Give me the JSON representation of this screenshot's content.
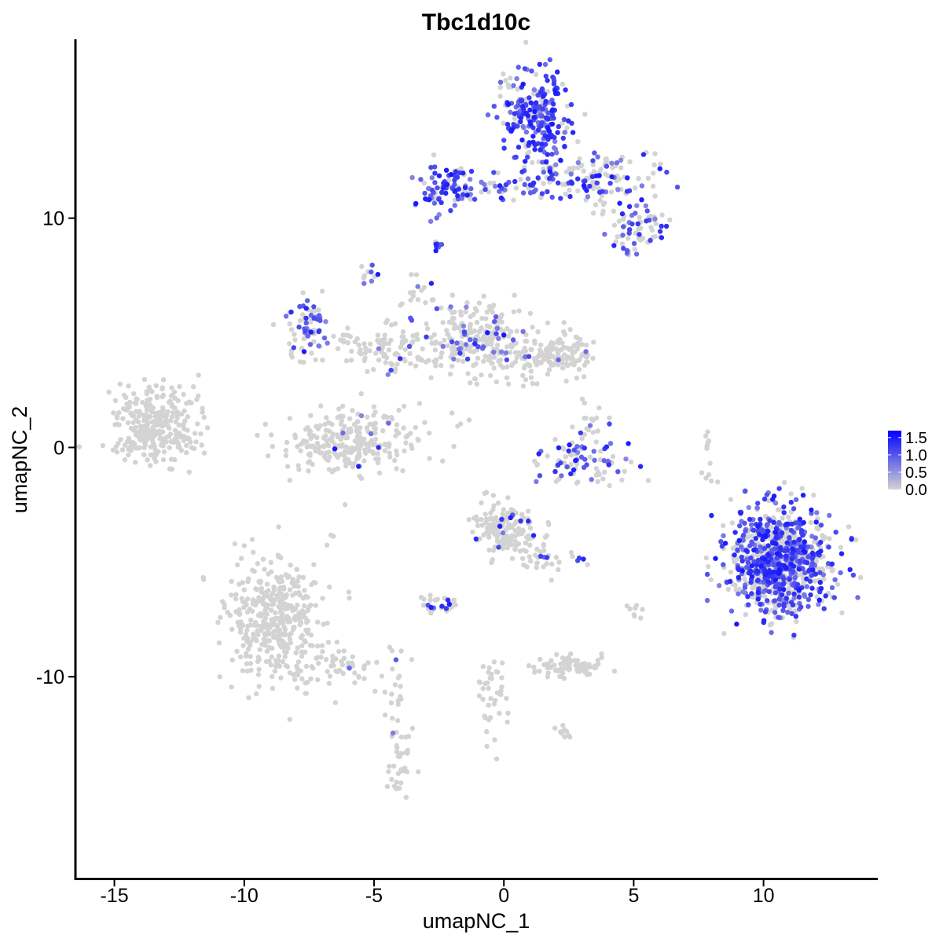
{
  "chart_data": {
    "type": "scatter",
    "title": "Tbc1d10c",
    "xlabel": "umapNC_1",
    "ylabel": "umapNC_2",
    "xlim": [
      -16.5,
      14.4
    ],
    "ylim": [
      -18.8,
      17.8
    ],
    "xticks": [
      -15,
      -10,
      -5,
      0,
      5,
      10
    ],
    "xtick_labels": [
      "-15",
      "-10",
      "-5",
      "0",
      "5",
      "10"
    ],
    "yticks": [
      -10,
      0,
      10
    ],
    "ytick_labels": [
      "-10",
      "0",
      "10"
    ],
    "grid": false,
    "color_scale": {
      "low": "#d3d3d3",
      "high": "#0000ff",
      "min": 0.0,
      "max": 1.7,
      "breaks": [
        0.0,
        0.5,
        1.0,
        1.5
      ],
      "break_labels": [
        "0.0",
        "0.5",
        "1.0",
        "1.5"
      ],
      "legend_position": "right"
    },
    "clusters": [
      {
        "cx": -13.5,
        "cy": 1.0,
        "sx": 0.8,
        "sy": 0.9,
        "n": 300,
        "expr_frac": 0.0
      },
      {
        "cx": -8.8,
        "cy": -7.5,
        "sx": 0.9,
        "sy": 1.3,
        "n": 380,
        "expr_frac": 0.0
      },
      {
        "cx": -6.5,
        "cy": -9.5,
        "sx": 1.5,
        "sy": 0.5,
        "n": 70,
        "expr_frac": 0.02
      },
      {
        "cx": -4.0,
        "cy": -12.5,
        "sx": 0.25,
        "sy": 1.6,
        "n": 50,
        "expr_frac": 0.04
      },
      {
        "cx": -5.8,
        "cy": 0.3,
        "sx": 1.3,
        "sy": 0.7,
        "n": 260,
        "expr_frac": 0.02
      },
      {
        "cx": -7.5,
        "cy": 5.3,
        "sx": 0.4,
        "sy": 0.7,
        "n": 70,
        "expr_frac": 0.55
      },
      {
        "cx": -4.5,
        "cy": 4.2,
        "sx": 1.2,
        "sy": 0.5,
        "n": 110,
        "expr_frac": 0.08
      },
      {
        "cx": -1.0,
        "cy": 4.8,
        "sx": 0.9,
        "sy": 0.9,
        "n": 240,
        "expr_frac": 0.15
      },
      {
        "cx": 2.0,
        "cy": 4.0,
        "sx": 0.7,
        "sy": 0.5,
        "n": 150,
        "expr_frac": 0.03
      },
      {
        "cx": 1.2,
        "cy": 14.5,
        "sx": 0.7,
        "sy": 1.1,
        "n": 260,
        "expr_frac": 0.75
      },
      {
        "cx": -2.2,
        "cy": 11.3,
        "sx": 0.6,
        "sy": 0.5,
        "n": 90,
        "expr_frac": 0.75
      },
      {
        "cx": 0.0,
        "cy": 11.3,
        "sx": 1.2,
        "sy": 0.25,
        "n": 45,
        "expr_frac": 0.6
      },
      {
        "cx": 3.6,
        "cy": 11.8,
        "sx": 1.2,
        "sy": 0.6,
        "n": 140,
        "expr_frac": 0.4
      },
      {
        "cx": 5.2,
        "cy": 9.5,
        "sx": 0.6,
        "sy": 0.6,
        "n": 70,
        "expr_frac": 0.5
      },
      {
        "cx": 3.0,
        "cy": -0.5,
        "sx": 1.0,
        "sy": 0.5,
        "n": 90,
        "expr_frac": 0.5
      },
      {
        "cx": 3.3,
        "cy": 1.0,
        "sx": 0.3,
        "sy": 0.4,
        "n": 20,
        "expr_frac": 0.1
      },
      {
        "cx": 0.0,
        "cy": -3.6,
        "sx": 0.6,
        "sy": 0.6,
        "n": 150,
        "expr_frac": 0.05
      },
      {
        "cx": 1.4,
        "cy": -4.7,
        "sx": 0.4,
        "sy": 0.5,
        "n": 30,
        "expr_frac": 0.05
      },
      {
        "cx": -2.5,
        "cy": -6.8,
        "sx": 0.4,
        "sy": 0.2,
        "n": 30,
        "expr_frac": 0.3
      },
      {
        "cx": 2.5,
        "cy": -9.5,
        "sx": 0.7,
        "sy": 0.25,
        "n": 80,
        "expr_frac": 0.0
      },
      {
        "cx": -0.5,
        "cy": -10.8,
        "sx": 0.3,
        "sy": 1.0,
        "n": 40,
        "expr_frac": 0.0
      },
      {
        "cx": 10.6,
        "cy": -4.9,
        "sx": 1.0,
        "sy": 1.1,
        "n": 900,
        "expr_frac": 0.55
      },
      {
        "cx": 7.9,
        "cy": -0.5,
        "sx": 0.15,
        "sy": 0.8,
        "n": 12,
        "expr_frac": 0.0
      },
      {
        "cx": -3.5,
        "cy": 6.0,
        "sx": 0.5,
        "sy": 1.0,
        "n": 20,
        "expr_frac": 0.2
      },
      {
        "cx": -2.6,
        "cy": 8.8,
        "sx": 0.12,
        "sy": 0.12,
        "n": 8,
        "expr_frac": 0.8
      },
      {
        "cx": -5.2,
        "cy": 7.5,
        "sx": 0.2,
        "sy": 0.3,
        "n": 10,
        "expr_frac": 0.6
      },
      {
        "cx": 2.3,
        "cy": -12.4,
        "sx": 0.25,
        "sy": 0.15,
        "n": 10,
        "expr_frac": 0.0
      },
      {
        "cx": 5.0,
        "cy": -7.2,
        "sx": 0.15,
        "sy": 0.3,
        "n": 8,
        "expr_frac": 0.0
      },
      {
        "cx": 3.0,
        "cy": -5.0,
        "sx": 0.15,
        "sy": 0.1,
        "n": 5,
        "expr_frac": 0.6
      }
    ]
  }
}
